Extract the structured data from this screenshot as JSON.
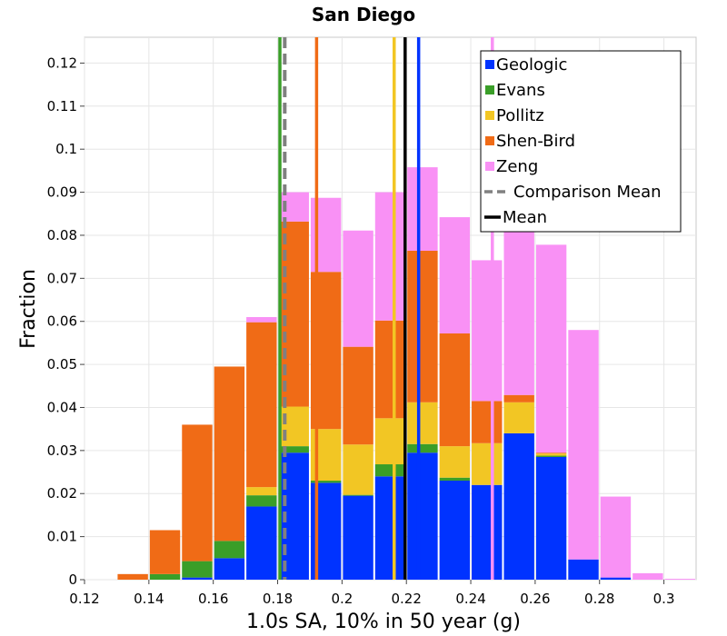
{
  "chart_data": {
    "type": "bar",
    "stacked": true,
    "title": "San Diego",
    "xlabel": "1.0s SA, 10% in 50 year (g)",
    "ylabel": "Fraction",
    "xlim": [
      0.12,
      0.31
    ],
    "ylim": [
      0,
      0.126
    ],
    "grid": true,
    "legend_position": "top-right",
    "bin_width": 0.01,
    "x_ticks": [
      0.12,
      0.14,
      0.16,
      0.18,
      0.2,
      0.22,
      0.24,
      0.26,
      0.28,
      0.3
    ],
    "x_tick_labels": [
      "0.12",
      "0.14",
      "0.16",
      "0.18",
      "0.2",
      "0.22",
      "0.24",
      "0.26",
      "0.28",
      "0.3"
    ],
    "y_ticks": [
      0,
      0.01,
      0.02,
      0.03,
      0.04,
      0.05,
      0.06,
      0.07,
      0.08,
      0.09,
      0.1,
      0.11,
      0.12
    ],
    "y_tick_labels": [
      "0",
      "0.01",
      "0.02",
      "0.03",
      "0.04",
      "0.05",
      "0.06",
      "0.07",
      "0.08",
      "0.09",
      "0.1",
      "0.11",
      "0.12"
    ],
    "bin_starts": [
      0.13,
      0.14,
      0.15,
      0.16,
      0.17,
      0.18,
      0.19,
      0.2,
      0.21,
      0.22,
      0.23,
      0.24,
      0.25,
      0.26,
      0.27,
      0.28,
      0.29,
      0.3
    ],
    "series": [
      {
        "name": "Geologic",
        "color": "#0033ff",
        "values": [
          0,
          0,
          0.0005,
          0.005,
          0.017,
          0.0295,
          0.0225,
          0.0195,
          0.024,
          0.0295,
          0.023,
          0.022,
          0.034,
          0.0285,
          0.0047,
          0.0005,
          0,
          0
        ]
      },
      {
        "name": "Evans",
        "color": "#3a9e28",
        "values": [
          0,
          0.0013,
          0.0038,
          0.004,
          0.0026,
          0.0015,
          0.0005,
          0.0002,
          0.0028,
          0.002,
          0.0007,
          0,
          0,
          0.0003,
          0,
          0,
          0,
          0
        ]
      },
      {
        "name": "Pollitz",
        "color": "#f2c624",
        "values": [
          0,
          0,
          0,
          0,
          0.0019,
          0.0092,
          0.012,
          0.0117,
          0.0107,
          0.0097,
          0.0073,
          0.0097,
          0.0072,
          0.0005,
          0,
          0,
          0,
          0
        ]
      },
      {
        "name": "Shen-Bird",
        "color": "#f06b16",
        "values": [
          0.0013,
          0.0102,
          0.0317,
          0.0405,
          0.0383,
          0.043,
          0.0365,
          0.0227,
          0.0227,
          0.0352,
          0.0262,
          0.0098,
          0.0017,
          0.0002,
          0,
          0,
          0,
          0
        ]
      },
      {
        "name": "Zeng",
        "color": "#f991f5",
        "values": [
          0,
          0,
          0,
          0,
          0.0012,
          0.0068,
          0.0172,
          0.027,
          0.0298,
          0.0194,
          0.027,
          0.0327,
          0.0391,
          0.0483,
          0.0533,
          0.0188,
          0.0015,
          0.0002
        ]
      }
    ],
    "vertical_lines": [
      {
        "name": "Geologic mean",
        "x": 0.2238,
        "color": "#0033ff",
        "style": "solid"
      },
      {
        "name": "Evans mean",
        "x": 0.1807,
        "color": "#3a9e28",
        "style": "solid"
      },
      {
        "name": "Pollitz mean",
        "x": 0.2162,
        "color": "#f2c624",
        "style": "solid"
      },
      {
        "name": "Shen-Bird mean",
        "x": 0.1921,
        "color": "#f06b16",
        "style": "solid"
      },
      {
        "name": "Zeng mean",
        "x": 0.2467,
        "color": "#f991f5",
        "style": "solid"
      },
      {
        "name": "Comparison Mean",
        "x": 0.1822,
        "color": "#808080",
        "style": "dashed"
      },
      {
        "name": "Mean",
        "x": 0.2196,
        "color": "#000000",
        "style": "solid"
      }
    ],
    "legend": [
      {
        "label": "Geologic",
        "color": "#0033ff",
        "kind": "box"
      },
      {
        "label": "Evans",
        "color": "#3a9e28",
        "kind": "box"
      },
      {
        "label": "Pollitz",
        "color": "#f2c624",
        "kind": "box"
      },
      {
        "label": "Shen-Bird",
        "color": "#f06b16",
        "kind": "box"
      },
      {
        "label": "Zeng",
        "color": "#f991f5",
        "kind": "box"
      },
      {
        "label": "Comparison Mean",
        "color": "#808080",
        "kind": "dashed-line"
      },
      {
        "label": "Mean",
        "color": "#000000",
        "kind": "line"
      }
    ]
  }
}
